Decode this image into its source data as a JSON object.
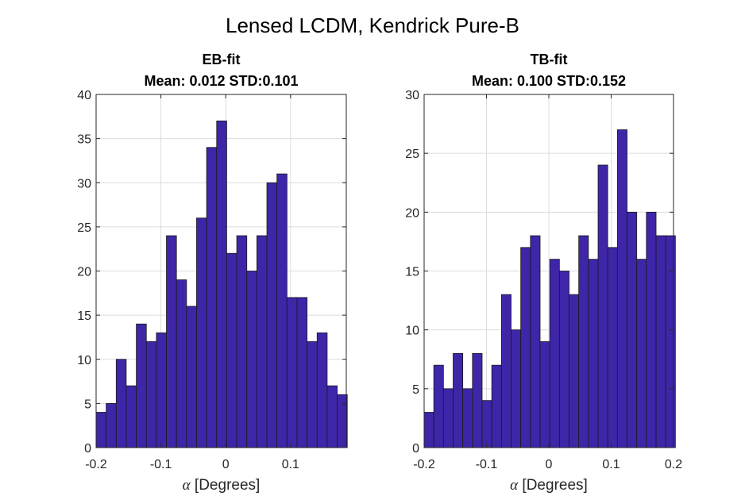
{
  "figure": {
    "title": "Lensed LCDM, Kendrick Pure-B"
  },
  "chart_data": [
    {
      "type": "histogram",
      "title_lines": [
        "EB-fit",
        "Mean: 0.012 STD:0.101"
      ],
      "xlabel": "α [Degrees]",
      "xlabel_symbol": "α",
      "xlabel_text": " [Degrees]",
      "ylabel": "",
      "xlim": [
        -0.2,
        0.186
      ],
      "ylim": [
        0,
        40
      ],
      "xticks": [
        -0.2,
        -0.1,
        0,
        0.1
      ],
      "xtick_labels": [
        "-0.2",
        "-0.1",
        "0",
        "0.1"
      ],
      "yticks": [
        0,
        5,
        10,
        15,
        20,
        25,
        30,
        35,
        40
      ],
      "ytick_labels": [
        "0",
        "5",
        "10",
        "15",
        "20",
        "25",
        "30",
        "35",
        "40"
      ],
      "grid": true,
      "bin_start": -0.2,
      "bin_width": 0.0155,
      "values": [
        4,
        5,
        10,
        7,
        14,
        12,
        13,
        24,
        19,
        16,
        26,
        34,
        37,
        22,
        24,
        20,
        24,
        30,
        31,
        17,
        17,
        12,
        13,
        7,
        6
      ],
      "bar_color": "#3f26a8"
    },
    {
      "type": "histogram",
      "title_lines": [
        "TB-fit",
        "Mean: 0.100 STD:0.152"
      ],
      "xlabel": "α [Degrees]",
      "xlabel_symbol": "α",
      "xlabel_text": " [Degrees]",
      "ylabel": "",
      "xlim": [
        -0.2,
        0.2
      ],
      "ylim": [
        0,
        30
      ],
      "xticks": [
        -0.2,
        -0.1,
        0,
        0.1,
        0.2
      ],
      "xtick_labels": [
        "-0.2",
        "-0.1",
        "0",
        "0.1",
        "0.2"
      ],
      "yticks": [
        0,
        5,
        10,
        15,
        20,
        25,
        30
      ],
      "ytick_labels": [
        "0",
        "5",
        "10",
        "15",
        "20",
        "25",
        "30"
      ],
      "grid": true,
      "bin_start": -0.2,
      "bin_width": 0.0155,
      "values": [
        3,
        7,
        5,
        8,
        5,
        8,
        4,
        7,
        13,
        10,
        17,
        18,
        9,
        16,
        15,
        13,
        18,
        16,
        24,
        17,
        27,
        20,
        16,
        20,
        18,
        18
      ],
      "bar_color": "#3f26a8"
    }
  ]
}
